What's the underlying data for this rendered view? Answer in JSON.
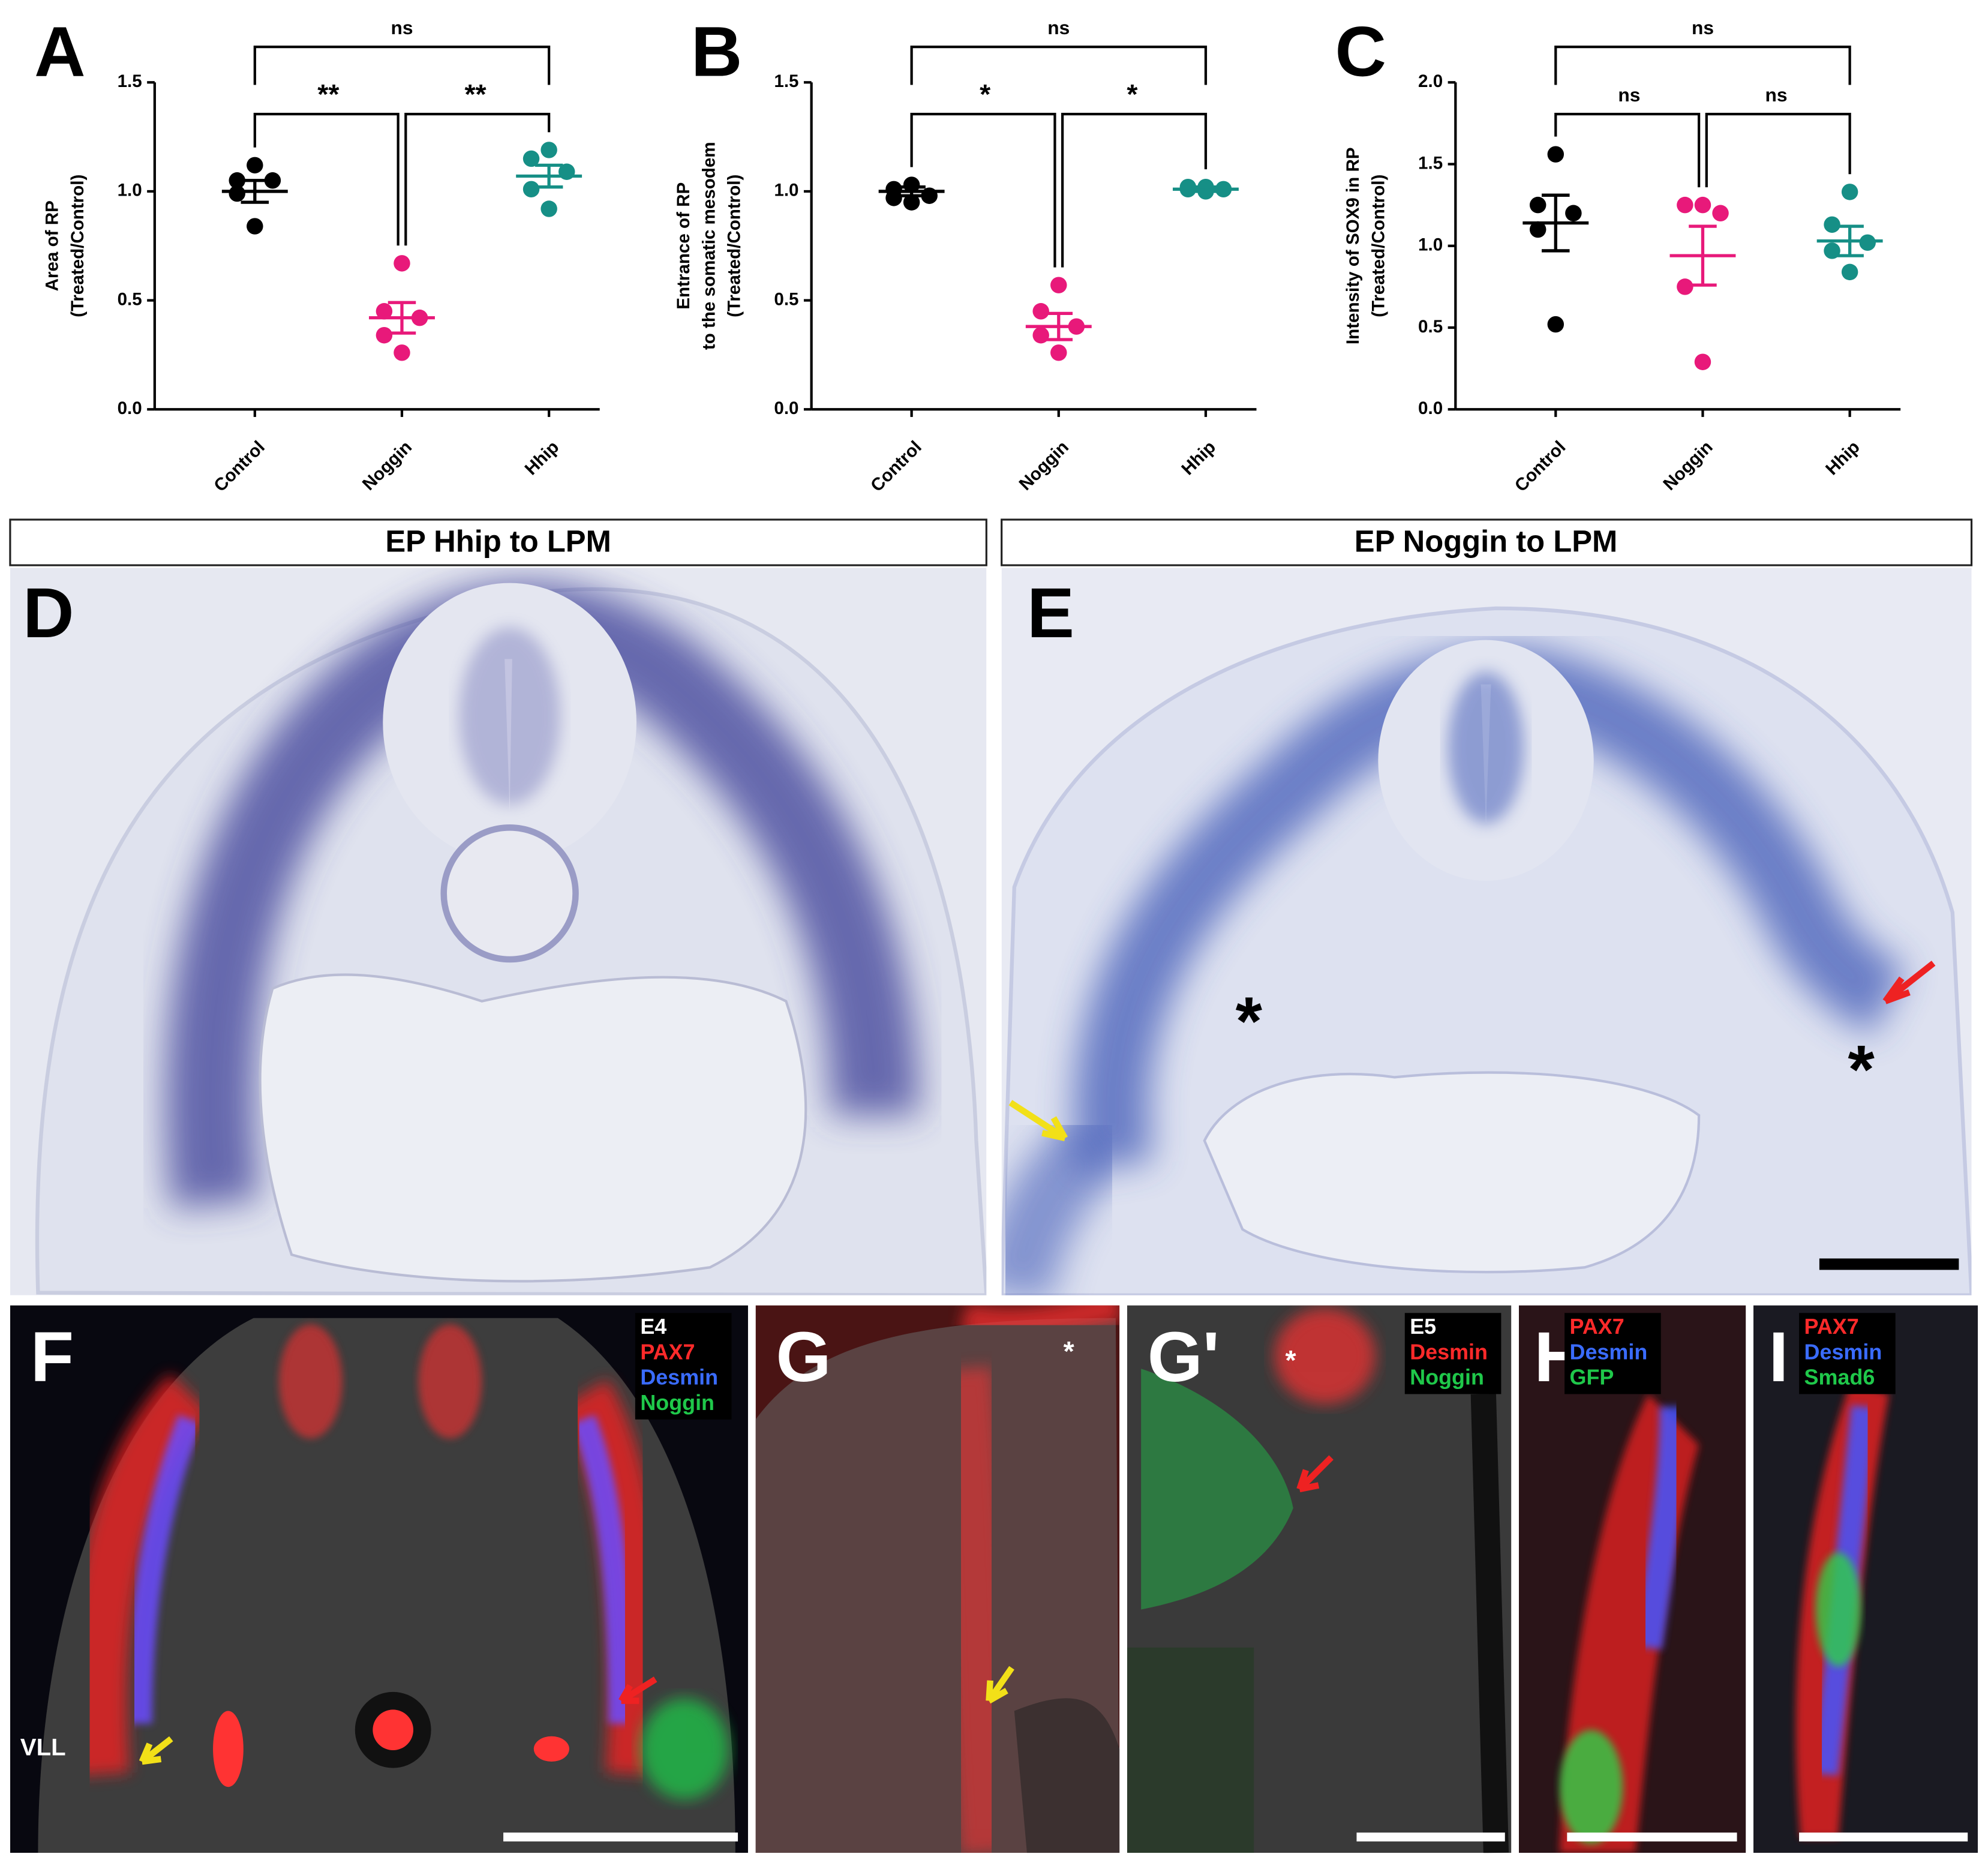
{
  "chart_data": [
    {
      "type": "dotplot",
      "panel_label": "A",
      "ylabel": [
        "Area of RP",
        "(Treated/Control)"
      ],
      "categories": [
        "Control",
        "Noggin",
        "Hhip"
      ],
      "colors": [
        "#000000",
        "#e8197a",
        "#168f86"
      ],
      "points": [
        [
          1.12,
          1.05,
          1.05,
          0.99,
          0.84
        ],
        [
          0.67,
          0.45,
          0.42,
          0.34,
          0.26
        ],
        [
          1.19,
          1.15,
          1.09,
          1.01,
          0.92
        ]
      ],
      "means": [
        1.0,
        0.42,
        1.07
      ],
      "sem": [
        0.05,
        0.07,
        0.05
      ],
      "ylim": [
        0,
        1.5
      ],
      "yticks": [
        {
          "value": 0,
          "label": "0.0"
        },
        {
          "value": 0.5,
          "label": "0.5"
        },
        {
          "value": 1,
          "label": "1.0"
        },
        {
          "value": 1.5,
          "label": "1.5"
        }
      ],
      "significance": [
        {
          "pair": [
            0,
            2
          ],
          "label": "ns"
        },
        {
          "pair": [
            0,
            1
          ],
          "label": "**"
        },
        {
          "pair": [
            1,
            2
          ],
          "label": "**"
        }
      ]
    },
    {
      "type": "dotplot",
      "panel_label": "B",
      "ylabel": [
        "Entrance of RP",
        "to the somatic mesodem",
        "(Treated/Control)"
      ],
      "categories": [
        "Control",
        "Noggin",
        "Hhip"
      ],
      "colors": [
        "#000000",
        "#e8197a",
        "#168f86"
      ],
      "points": [
        [
          1.03,
          1.01,
          0.98,
          0.97,
          0.95
        ],
        [
          0.57,
          0.45,
          0.38,
          0.34,
          0.26
        ],
        [
          1.02,
          1.02,
          1.01,
          1.01,
          1.0
        ]
      ],
      "means": [
        1.0,
        0.38,
        1.01
      ],
      "sem": [
        0.02,
        0.06,
        0.01
      ],
      "ylim": [
        0,
        1.5
      ],
      "yticks": [
        {
          "value": 0,
          "label": "0.0"
        },
        {
          "value": 0.5,
          "label": "0.5"
        },
        {
          "value": 1,
          "label": "1.0"
        },
        {
          "value": 1.5,
          "label": "1.5"
        }
      ],
      "significance": [
        {
          "pair": [
            0,
            2
          ],
          "label": "ns"
        },
        {
          "pair": [
            0,
            1
          ],
          "label": "*"
        },
        {
          "pair": [
            1,
            2
          ],
          "label": "*"
        }
      ]
    },
    {
      "type": "dotplot",
      "panel_label": "C",
      "ylabel": [
        "Intensity of SOX9 in RP",
        "(Treated/Control)"
      ],
      "categories": [
        "Control",
        "Noggin",
        "Hhip"
      ],
      "colors": [
        "#000000",
        "#e8197a",
        "#168f86"
      ],
      "points": [
        [
          1.56,
          1.25,
          1.2,
          1.1,
          0.52
        ],
        [
          1.25,
          1.25,
          1.2,
          0.75,
          0.29
        ],
        [
          1.33,
          1.13,
          1.02,
          0.97,
          0.84
        ]
      ],
      "means": [
        1.14,
        0.94,
        1.03
      ],
      "sem": [
        0.17,
        0.18,
        0.09
      ],
      "ylim": [
        0,
        2
      ],
      "yticks": [
        {
          "value": 0,
          "label": "0.0"
        },
        {
          "value": 0.5,
          "label": "0.5"
        },
        {
          "value": 1,
          "label": "1.0"
        },
        {
          "value": 1.5,
          "label": "1.5"
        },
        {
          "value": 2,
          "label": "2.0"
        }
      ],
      "significance": [
        {
          "pair": [
            0,
            2
          ],
          "label": "ns"
        },
        {
          "pair": [
            0,
            1
          ],
          "label": "ns"
        },
        {
          "pair": [
            1,
            2
          ],
          "label": "ns"
        }
      ]
    }
  ],
  "panels": [
    {
      "label": "D",
      "header": "EP Hhip to LPM"
    },
    {
      "label": "E",
      "header": "EP Noggin to LPM",
      "annotations": [
        "*",
        "*"
      ]
    },
    {
      "label": "F",
      "stain": [
        "E4",
        "PAX7",
        "Desmin",
        "Noggin"
      ],
      "stain_colors": [
        "#ffffff",
        "#ff2a2a",
        "#3a6cff",
        "#1fc84a"
      ],
      "annotation": "VLL"
    },
    {
      "label": "G",
      "annotations": [
        "*"
      ]
    },
    {
      "label": "G'",
      "stain": [
        "E5",
        "Desmin",
        "Noggin"
      ],
      "stain_colors": [
        "#ffffff",
        "#ff2a2a",
        "#1fc84a"
      ],
      "annotations": [
        "*"
      ]
    },
    {
      "label": "H",
      "stain": [
        "PAX7",
        "Desmin",
        "GFP"
      ],
      "stain_colors": [
        "#ff2a2a",
        "#3a6cff",
        "#1fc84a"
      ]
    },
    {
      "label": "I",
      "stain": [
        "PAX7",
        "Desmin",
        "Smad6"
      ],
      "stain_colors": [
        "#ff2a2a",
        "#3a6cff",
        "#1fc84a"
      ]
    }
  ]
}
